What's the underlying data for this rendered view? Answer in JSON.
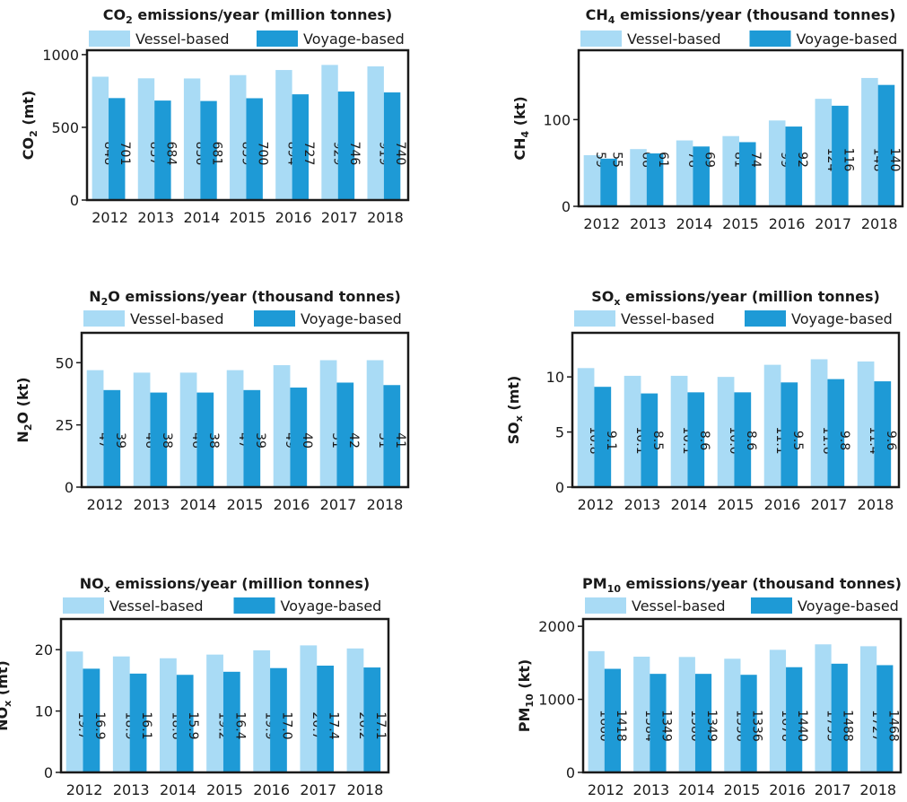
{
  "colors": {
    "vessel": "#a9dbf5",
    "voyage": "#1e9ad6",
    "frame": "#1a1a1a",
    "text": "#1a1a1a"
  },
  "chart_data": [
    {
      "type": "bar",
      "title_main": "CO",
      "title_sub": "2",
      "title_rest": " emissions/year (million tonnes)",
      "ylabel_main": "CO",
      "ylabel_sub": "2",
      "ylabel_rest": " (mt)",
      "categories": [
        "2012",
        "2013",
        "2014",
        "2015",
        "2016",
        "2017",
        "2018"
      ],
      "series": [
        {
          "name": "Vessel-based",
          "values": [
            848,
            837,
            836,
            859,
            894,
            929,
            919
          ],
          "labels": [
            "848",
            "837",
            "836",
            "859",
            "894",
            "929",
            "919"
          ]
        },
        {
          "name": "Voyage-based",
          "values": [
            701,
            684,
            681,
            700,
            727,
            746,
            740
          ],
          "labels": [
            "701",
            "684",
            "681",
            "700",
            "727",
            "746",
            "740"
          ]
        }
      ],
      "ylim": [
        0,
        1030
      ],
      "yticks": [
        0,
        500,
        1000
      ],
      "ytick_labels": [
        "0",
        "500",
        "1000"
      ],
      "legend": "top"
    },
    {
      "type": "bar",
      "title_main": "CH",
      "title_sub": "4",
      "title_rest": " emissions/year (thousand tonnes)",
      "ylabel_main": "CH",
      "ylabel_sub": "4",
      "ylabel_rest": " (kt)",
      "categories": [
        "2012",
        "2013",
        "2014",
        "2015",
        "2016",
        "2017",
        "2018"
      ],
      "series": [
        {
          "name": "Vessel-based",
          "values": [
            59,
            66,
            76,
            81,
            99,
            124,
            148
          ],
          "labels": [
            "59",
            "66",
            "76",
            "81",
            "99",
            "124",
            "148"
          ]
        },
        {
          "name": "Voyage-based",
          "values": [
            55,
            61,
            69,
            74,
            92,
            116,
            140
          ],
          "labels": [
            "55",
            "61",
            "69",
            "74",
            "92",
            "116",
            "140"
          ]
        }
      ],
      "ylim": [
        0,
        180
      ],
      "yticks": [
        0,
        100
      ],
      "ytick_labels": [
        "0",
        "100"
      ],
      "legend": "top"
    },
    {
      "type": "bar",
      "title_main": "N",
      "title_sub": "2",
      "title_rest": "O emissions/year (thousand tonnes)",
      "ylabel_main": "N",
      "ylabel_sub": "2",
      "ylabel_rest": "O (kt)",
      "categories": [
        "2012",
        "2013",
        "2014",
        "2015",
        "2016",
        "2017",
        "2018"
      ],
      "series": [
        {
          "name": "Vessel-based",
          "values": [
            47,
            46,
            46,
            47,
            49,
            51,
            51
          ],
          "labels": [
            "47",
            "46",
            "46",
            "47",
            "49",
            "51",
            "51"
          ]
        },
        {
          "name": "Voyage-based",
          "values": [
            39,
            38,
            38,
            39,
            40,
            42,
            41
          ],
          "labels": [
            "39",
            "38",
            "38",
            "39",
            "40",
            "42",
            "41"
          ]
        }
      ],
      "ylim": [
        0,
        62
      ],
      "yticks": [
        0,
        25,
        50
      ],
      "ytick_labels": [
        "0",
        "25",
        "50"
      ],
      "legend": "top"
    },
    {
      "type": "bar",
      "title_main": "SO",
      "title_sub": "x",
      "title_rest": " emissions/year (million tonnes)",
      "ylabel_main": "SO",
      "ylabel_sub": "x",
      "ylabel_rest": " (mt)",
      "categories": [
        "2012",
        "2013",
        "2014",
        "2015",
        "2016",
        "2017",
        "2018"
      ],
      "series": [
        {
          "name": "Vessel-based",
          "values": [
            10.8,
            10.1,
            10.1,
            10.0,
            11.1,
            11.6,
            11.4
          ],
          "labels": [
            "10.8",
            "10.1",
            "10.1",
            "10.0",
            "11.1",
            "11.6",
            "11.4"
          ]
        },
        {
          "name": "Voyage-based",
          "values": [
            9.1,
            8.5,
            8.6,
            8.6,
            9.5,
            9.8,
            9.6
          ],
          "labels": [
            "9.1",
            "8.5",
            "8.6",
            "8.6",
            "9.5",
            "9.8",
            "9.6"
          ]
        }
      ],
      "ylim": [
        0,
        14
      ],
      "yticks": [
        0,
        5,
        10
      ],
      "ytick_labels": [
        "0",
        "5",
        "10"
      ],
      "legend": "top"
    },
    {
      "type": "bar",
      "title_main": "NO",
      "title_sub": "x",
      "title_rest": " emissions/year (million tonnes)",
      "ylabel_main": "NO",
      "ylabel_sub": "x",
      "ylabel_rest": " (mt)",
      "categories": [
        "2012",
        "2013",
        "2014",
        "2015",
        "2016",
        "2017",
        "2018"
      ],
      "series": [
        {
          "name": "Vessel-based",
          "values": [
            19.7,
            18.9,
            18.6,
            19.2,
            19.9,
            20.7,
            20.2
          ],
          "labels": [
            "19.7",
            "18.9",
            "18.6",
            "19.2",
            "19.9",
            "20.7",
            "20.2"
          ]
        },
        {
          "name": "Voyage-based",
          "values": [
            16.9,
            16.1,
            15.9,
            16.4,
            17.0,
            17.4,
            17.1
          ],
          "labels": [
            "16.9",
            "16.1",
            "15.9",
            "16.4",
            "17.0",
            "17.4",
            "17.1"
          ]
        }
      ],
      "ylim": [
        0,
        25
      ],
      "yticks": [
        0,
        10,
        20
      ],
      "ytick_labels": [
        "0",
        "10",
        "20"
      ],
      "legend": "top"
    },
    {
      "type": "bar",
      "title_main": "PM",
      "title_sub": "10",
      "title_rest": " emissions/year (thousand tonnes)",
      "ylabel_main": "PM",
      "ylabel_sub": "10",
      "ylabel_rest": " (kt)",
      "categories": [
        "2012",
        "2013",
        "2014",
        "2015",
        "2016",
        "2017",
        "2018"
      ],
      "series": [
        {
          "name": "Vessel-based",
          "values": [
            1660,
            1584,
            1580,
            1556,
            1678,
            1753,
            1727
          ],
          "labels": [
            "1660",
            "1584",
            "1580",
            "1556",
            "1678",
            "1753",
            "1727"
          ]
        },
        {
          "name": "Voyage-based",
          "values": [
            1418,
            1349,
            1349,
            1336,
            1440,
            1488,
            1468
          ],
          "labels": [
            "1418",
            "1349",
            "1349",
            "1336",
            "1440",
            "1488",
            "1468"
          ]
        }
      ],
      "ylim": [
        0,
        2100
      ],
      "yticks": [
        0,
        1000,
        2000
      ],
      "ytick_labels": [
        "0",
        "1000",
        "2000"
      ],
      "legend": "top"
    }
  ]
}
